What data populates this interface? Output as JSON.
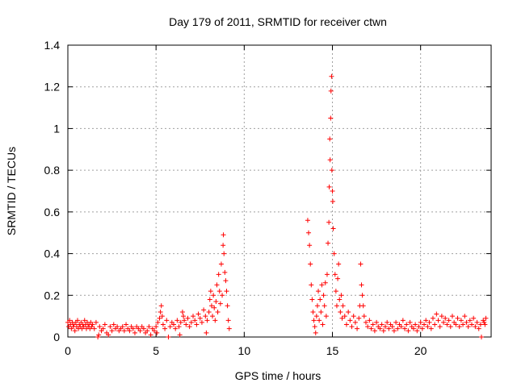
{
  "chart_data": {
    "type": "scatter",
    "title": "Day 179 of 2011, SRMTID for receiver ctwn",
    "xlabel": "GPS time / hours",
    "ylabel": "SRMTID / TECUs",
    "xlim": [
      0,
      24
    ],
    "ylim": [
      0,
      1.4
    ],
    "x_ticks": [
      0,
      5,
      10,
      15,
      20
    ],
    "x_tick_labels": [
      "0",
      "5",
      "10",
      "15",
      "20"
    ],
    "y_ticks": [
      0,
      0.2,
      0.4,
      0.6,
      0.8,
      1.0,
      1.2,
      1.4
    ],
    "y_tick_labels": [
      "0",
      "0.2",
      "0.4",
      "0.6",
      "0.8",
      "1",
      "1.2",
      "1.4"
    ],
    "grid": true,
    "grid_style": "dotted",
    "marker": "+",
    "marker_color": "#ff0000",
    "series": [
      {
        "points": [
          [
            0.0,
            0.07
          ],
          [
            0.05,
            0.05
          ],
          [
            0.1,
            0.08
          ],
          [
            0.15,
            0.06
          ],
          [
            0.2,
            0.04
          ],
          [
            0.25,
            0.07
          ],
          [
            0.3,
            0.05
          ],
          [
            0.35,
            0.06
          ],
          [
            0.4,
            0.03
          ],
          [
            0.45,
            0.07
          ],
          [
            0.5,
            0.05
          ],
          [
            0.55,
            0.08
          ],
          [
            0.6,
            0.04
          ],
          [
            0.65,
            0.06
          ],
          [
            0.7,
            0.05
          ],
          [
            0.75,
            0.07
          ],
          [
            0.8,
            0.04
          ],
          [
            0.85,
            0.06
          ],
          [
            0.9,
            0.05
          ],
          [
            0.95,
            0.08
          ],
          [
            1.0,
            0.06
          ],
          [
            1.05,
            0.04
          ],
          [
            1.1,
            0.07
          ],
          [
            1.15,
            0.05
          ],
          [
            1.2,
            0.06
          ],
          [
            1.25,
            0.04
          ],
          [
            1.3,
            0.07
          ],
          [
            1.35,
            0.05
          ],
          [
            1.4,
            0.06
          ],
          [
            1.5,
            0.04
          ],
          [
            1.6,
            0.07
          ],
          [
            1.7,
            0.0
          ],
          [
            1.75,
            0.01
          ],
          [
            1.8,
            0.05
          ],
          [
            1.9,
            0.03
          ],
          [
            2.0,
            0.04
          ],
          [
            2.1,
            0.06
          ],
          [
            2.2,
            0.02
          ],
          [
            2.3,
            0.01
          ],
          [
            2.4,
            0.05
          ],
          [
            2.5,
            0.03
          ],
          [
            2.6,
            0.06
          ],
          [
            2.7,
            0.04
          ],
          [
            2.8,
            0.05
          ],
          [
            2.9,
            0.03
          ],
          [
            3.0,
            0.04
          ],
          [
            3.1,
            0.05
          ],
          [
            3.2,
            0.03
          ],
          [
            3.3,
            0.06
          ],
          [
            3.4,
            0.04
          ],
          [
            3.5,
            0.03
          ],
          [
            3.6,
            0.05
          ],
          [
            3.7,
            0.04
          ],
          [
            3.8,
            0.02
          ],
          [
            3.9,
            0.05
          ],
          [
            4.0,
            0.04
          ],
          [
            4.1,
            0.03
          ],
          [
            4.2,
            0.05
          ],
          [
            4.3,
            0.04
          ],
          [
            4.4,
            0.02
          ],
          [
            4.5,
            0.03
          ],
          [
            4.6,
            0.05
          ],
          [
            4.7,
            0.01
          ],
          [
            4.8,
            0.04
          ],
          [
            4.9,
            0.03
          ],
          [
            5.0,
            0.05
          ],
          [
            5.05,
            0.02
          ],
          [
            5.1,
            0.07
          ],
          [
            5.2,
            0.09
          ],
          [
            5.25,
            0.12
          ],
          [
            5.3,
            0.15
          ],
          [
            5.35,
            0.1
          ],
          [
            5.4,
            0.06
          ],
          [
            5.5,
            0.04
          ],
          [
            5.6,
            0.08
          ],
          [
            5.7,
            0.0
          ],
          [
            5.8,
            0.05
          ],
          [
            5.9,
            0.07
          ],
          [
            6.0,
            0.06
          ],
          [
            6.1,
            0.04
          ],
          [
            6.2,
            0.08
          ],
          [
            6.3,
            0.05
          ],
          [
            6.35,
            0.01
          ],
          [
            6.4,
            0.07
          ],
          [
            6.5,
            0.12
          ],
          [
            6.55,
            0.1
          ],
          [
            6.6,
            0.08
          ],
          [
            6.7,
            0.06
          ],
          [
            6.8,
            0.09
          ],
          [
            6.9,
            0.05
          ],
          [
            7.0,
            0.07
          ],
          [
            7.1,
            0.1
          ],
          [
            7.2,
            0.08
          ],
          [
            7.3,
            0.06
          ],
          [
            7.4,
            0.11
          ],
          [
            7.5,
            0.09
          ],
          [
            7.6,
            0.07
          ],
          [
            7.7,
            0.13
          ],
          [
            7.8,
            0.1
          ],
          [
            7.85,
            0.02
          ],
          [
            7.9,
            0.08
          ],
          [
            8.0,
            0.12
          ],
          [
            8.05,
            0.18
          ],
          [
            8.1,
            0.22
          ],
          [
            8.15,
            0.15
          ],
          [
            8.2,
            0.1
          ],
          [
            8.25,
            0.2
          ],
          [
            8.3,
            0.14
          ],
          [
            8.35,
            0.08
          ],
          [
            8.4,
            0.17
          ],
          [
            8.45,
            0.25
          ],
          [
            8.5,
            0.12
          ],
          [
            8.55,
            0.3
          ],
          [
            8.6,
            0.22
          ],
          [
            8.65,
            0.16
          ],
          [
            8.7,
            0.35
          ],
          [
            8.75,
            0.2
          ],
          [
            8.8,
            0.44
          ],
          [
            8.82,
            0.49
          ],
          [
            8.85,
            0.4
          ],
          [
            8.9,
            0.31
          ],
          [
            8.95,
            0.27
          ],
          [
            9.0,
            0.22
          ],
          [
            9.05,
            0.15
          ],
          [
            9.1,
            0.08
          ],
          [
            9.15,
            0.04
          ],
          [
            13.6,
            0.56
          ],
          [
            13.65,
            0.5
          ],
          [
            13.7,
            0.44
          ],
          [
            13.75,
            0.35
          ],
          [
            13.8,
            0.25
          ],
          [
            13.85,
            0.18
          ],
          [
            13.9,
            0.12
          ],
          [
            13.95,
            0.08
          ],
          [
            14.0,
            0.05
          ],
          [
            14.05,
            0.02
          ],
          [
            14.1,
            0.1
          ],
          [
            14.15,
            0.15
          ],
          [
            14.2,
            0.22
          ],
          [
            14.25,
            0.08
          ],
          [
            14.3,
            0.18
          ],
          [
            14.35,
            0.12
          ],
          [
            14.4,
            0.25
          ],
          [
            14.45,
            0.06
          ],
          [
            14.5,
            0.2
          ],
          [
            14.55,
            0.15
          ],
          [
            14.6,
            0.26
          ],
          [
            14.65,
            0.1
          ],
          [
            14.7,
            0.3
          ],
          [
            14.75,
            0.45
          ],
          [
            14.8,
            0.55
          ],
          [
            14.82,
            0.72
          ],
          [
            14.85,
            0.95
          ],
          [
            14.87,
            0.85
          ],
          [
            14.9,
            1.05
          ],
          [
            14.92,
            1.18
          ],
          [
            14.95,
            1.25
          ],
          [
            14.97,
            0.8
          ],
          [
            15.0,
            0.7
          ],
          [
            15.02,
            0.65
          ],
          [
            15.05,
            0.52
          ],
          [
            15.1,
            0.4
          ],
          [
            15.15,
            0.3
          ],
          [
            15.2,
            0.22
          ],
          [
            15.25,
            0.15
          ],
          [
            15.3,
            0.28
          ],
          [
            15.35,
            0.35
          ],
          [
            15.4,
            0.18
          ],
          [
            15.45,
            0.12
          ],
          [
            15.5,
            0.2
          ],
          [
            15.55,
            0.09
          ],
          [
            15.6,
            0.15
          ],
          [
            15.7,
            0.1
          ],
          [
            15.8,
            0.06
          ],
          [
            15.9,
            0.12
          ],
          [
            16.0,
            0.08
          ],
          [
            16.1,
            0.05
          ],
          [
            16.2,
            0.1
          ],
          [
            16.3,
            0.07
          ],
          [
            16.4,
            0.04
          ],
          [
            16.5,
            0.09
          ],
          [
            16.55,
            0.15
          ],
          [
            16.6,
            0.35
          ],
          [
            16.65,
            0.25
          ],
          [
            16.7,
            0.2
          ],
          [
            16.75,
            0.15
          ],
          [
            16.8,
            0.1
          ],
          [
            16.9,
            0.07
          ],
          [
            17.0,
            0.05
          ],
          [
            17.1,
            0.08
          ],
          [
            17.2,
            0.04
          ],
          [
            17.3,
            0.06
          ],
          [
            17.4,
            0.03
          ],
          [
            17.5,
            0.07
          ],
          [
            17.6,
            0.05
          ],
          [
            17.7,
            0.04
          ],
          [
            17.8,
            0.06
          ],
          [
            17.9,
            0.03
          ],
          [
            18.0,
            0.05
          ],
          [
            18.1,
            0.07
          ],
          [
            18.2,
            0.04
          ],
          [
            18.3,
            0.06
          ],
          [
            18.4,
            0.05
          ],
          [
            18.5,
            0.03
          ],
          [
            18.6,
            0.07
          ],
          [
            18.7,
            0.04
          ],
          [
            18.8,
            0.06
          ],
          [
            18.9,
            0.05
          ],
          [
            19.0,
            0.08
          ],
          [
            19.1,
            0.04
          ],
          [
            19.2,
            0.06
          ],
          [
            19.3,
            0.03
          ],
          [
            19.4,
            0.07
          ],
          [
            19.5,
            0.05
          ],
          [
            19.6,
            0.04
          ],
          [
            19.7,
            0.06
          ],
          [
            19.8,
            0.03
          ],
          [
            19.9,
            0.05
          ],
          [
            20.0,
            0.07
          ],
          [
            20.1,
            0.04
          ],
          [
            20.2,
            0.06
          ],
          [
            20.3,
            0.08
          ],
          [
            20.4,
            0.05
          ],
          [
            20.5,
            0.07
          ],
          [
            20.6,
            0.04
          ],
          [
            20.7,
            0.09
          ],
          [
            20.8,
            0.06
          ],
          [
            20.9,
            0.11
          ],
          [
            21.0,
            0.08
          ],
          [
            21.1,
            0.05
          ],
          [
            21.2,
            0.1
          ],
          [
            21.3,
            0.07
          ],
          [
            21.4,
            0.09
          ],
          [
            21.5,
            0.06
          ],
          [
            21.6,
            0.08
          ],
          [
            21.7,
            0.05
          ],
          [
            21.8,
            0.1
          ],
          [
            21.9,
            0.07
          ],
          [
            22.0,
            0.06
          ],
          [
            22.1,
            0.09
          ],
          [
            22.2,
            0.05
          ],
          [
            22.3,
            0.08
          ],
          [
            22.4,
            0.06
          ],
          [
            22.5,
            0.1
          ],
          [
            22.6,
            0.07
          ],
          [
            22.7,
            0.05
          ],
          [
            22.8,
            0.08
          ],
          [
            22.9,
            0.06
          ],
          [
            23.0,
            0.09
          ],
          [
            23.1,
            0.05
          ],
          [
            23.2,
            0.07
          ],
          [
            23.3,
            0.04
          ],
          [
            23.4,
            0.06
          ],
          [
            23.45,
            0.0
          ],
          [
            23.55,
            0.08
          ],
          [
            23.6,
            0.07
          ],
          [
            23.65,
            0.06
          ],
          [
            23.7,
            0.09
          ]
        ]
      }
    ]
  }
}
